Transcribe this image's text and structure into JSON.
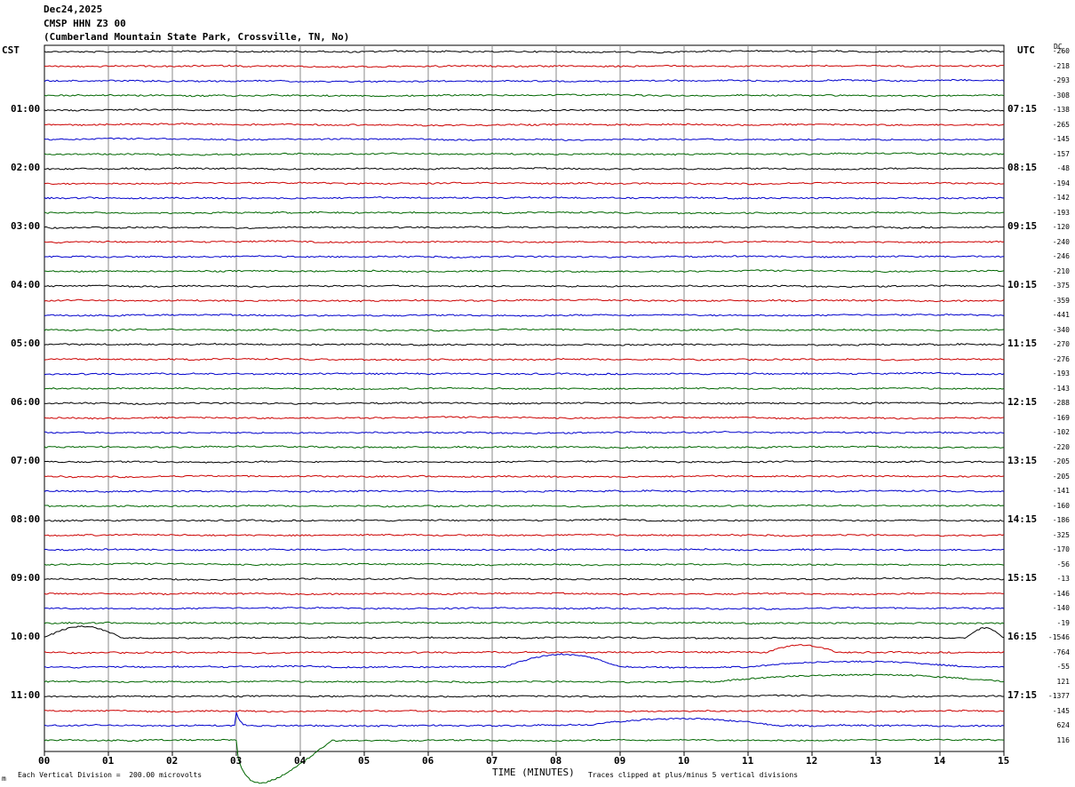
{
  "header": {
    "date": "Dec24,2025",
    "station": "CMSP HHN Z3 00",
    "location": "(Cumberland Mountain State Park, Crossville, TN, No)"
  },
  "labels": {
    "left_tz": "CST",
    "right_tz": "UTC",
    "dc": "DC",
    "x_axis_title": "TIME (MINUTES)",
    "vertical_division": "Each Vertical Division =  200.00 microvolts",
    "clip_note": "Traces clipped at plus/minus 5 vertical divisions",
    "corner_mark": "m"
  },
  "colors": [
    "#000000",
    "#cc0000",
    "#0000cc",
    "#006600"
  ],
  "chart_data": {
    "type": "line",
    "x_ticks": [
      "00",
      "01",
      "02",
      "03",
      "04",
      "05",
      "06",
      "07",
      "08",
      "09",
      "10",
      "11",
      "12",
      "13",
      "14",
      "15"
    ],
    "xlim": [
      0,
      15
    ],
    "left_hour_labels": [
      "01:00",
      "02:00",
      "03:00",
      "04:00",
      "05:00",
      "06:00",
      "07:00",
      "08:00",
      "09:00",
      "10:00",
      "11:00"
    ],
    "right_hour_labels": [
      "07:15",
      "08:15",
      "09:15",
      "10:15",
      "11:15",
      "12:15",
      "13:15",
      "14:15",
      "15:15",
      "16:15",
      "17:15"
    ],
    "dc_offsets": [
      "-260",
      "-218",
      "-293",
      "-308",
      "-138",
      "-265",
      "-145",
      "-157",
      "-48",
      "-194",
      "-142",
      "-193",
      "-120",
      "-240",
      "-246",
      "-210",
      "-375",
      "-359",
      "-441",
      "-340",
      "-270",
      "-276",
      "-193",
      "-143",
      "-288",
      "-169",
      "-102",
      "-220",
      "-205",
      "-205",
      "-141",
      "-160",
      "-186",
      "-325",
      "-170",
      "-56",
      "-13",
      "-146",
      "-140",
      "-19",
      "-1546",
      "-764",
      "-55",
      "121",
      "-1377",
      "-145",
      "624",
      "116"
    ],
    "trace_count": 48,
    "events": [
      {
        "trace": 40,
        "desc": "swell",
        "start_min": 0.0,
        "end_min": 1.2,
        "amp": -0.8
      },
      {
        "trace": 40,
        "desc": "swell",
        "start_min": 14.4,
        "end_min": 15.0,
        "amp": -0.7
      },
      {
        "trace": 41,
        "desc": "swell",
        "start_min": 11.3,
        "end_min": 12.4,
        "amp": -0.5
      },
      {
        "trace": 42,
        "desc": "swell",
        "start_min": 7.2,
        "end_min": 9.0,
        "amp": -0.9
      },
      {
        "trace": 42,
        "desc": "swell",
        "start_min": 11.0,
        "end_min": 14.5,
        "amp": -0.4
      },
      {
        "trace": 43,
        "desc": "swell",
        "start_min": 10.5,
        "end_min": 15.0,
        "amp": -0.5
      },
      {
        "trace": 46,
        "desc": "spike",
        "start_min": 3.0,
        "end_min": 3.3,
        "amp": -1.0
      },
      {
        "trace": 46,
        "desc": "swell",
        "start_min": 8.5,
        "end_min": 11.5,
        "amp": -0.5
      },
      {
        "trace": 47,
        "desc": "clipped-drop",
        "start_min": 3.0,
        "end_min": 4.5,
        "amp": 3.0
      }
    ]
  }
}
